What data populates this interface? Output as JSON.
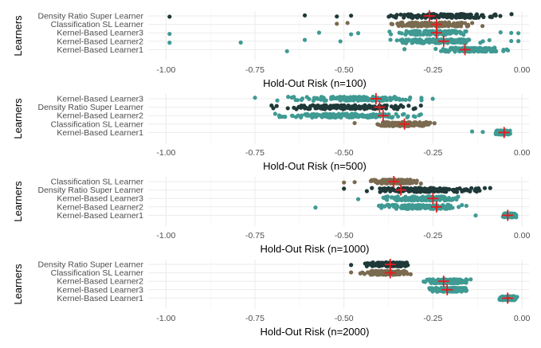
{
  "chart_data": [
    {
      "type": "scatter",
      "xlabel": "Hold-Out Risk (n=100)",
      "ylabel": "Learners",
      "xlim": [
        -1.05,
        0.02
      ],
      "xticks": [
        "-1.00",
        "-0.75",
        "-0.50",
        "-0.25",
        "0.00"
      ],
      "xtick_values": [
        -1.0,
        -0.75,
        -0.5,
        -0.25,
        0.0
      ],
      "categories": [
        "Density Ratio Super Learner",
        "Classification SL Learner",
        "Kernel-Based Learner3",
        "Kernel-Based Learner2",
        "Kernel-Based Learner1"
      ],
      "series": [
        {
          "category": "Density Ratio Super Learner",
          "color": "#1f3838",
          "range": [
            -0.43,
            -0.01
          ],
          "outliers": [
            -0.99,
            -0.61,
            -0.52,
            -0.48
          ],
          "mean": -0.26
        },
        {
          "category": "Classification SL Learner",
          "color": "#7a6a4f",
          "range": [
            -0.42,
            -0.08
          ],
          "outliers": [
            -0.52,
            -0.49
          ],
          "mean": -0.24
        },
        {
          "category": "Kernel-Based Learner3",
          "color": "#3f9a93",
          "range": [
            -0.41,
            -0.11
          ],
          "outliers": [
            -0.99,
            -0.57,
            -0.48,
            -0.46,
            -0.06,
            -0.03,
            -0.01
          ],
          "mean": -0.24
        },
        {
          "category": "Kernel-Based Learner2",
          "color": "#3f9a93",
          "range": [
            -0.4,
            -0.08
          ],
          "outliers": [
            -0.99,
            -0.79,
            -0.61,
            -0.51,
            -0.03,
            -0.01
          ],
          "mean": -0.22
        },
        {
          "category": "Kernel-Based Learner1",
          "color": "#3f9a93",
          "range": [
            -0.27,
            -0.01
          ],
          "outliers": [
            -0.66,
            -0.33
          ],
          "mean": -0.16
        }
      ]
    },
    {
      "type": "scatter",
      "xlabel": "Hold-Out Risk (n=500)",
      "ylabel": "Learners",
      "xlim": [
        -1.05,
        0.02
      ],
      "xticks": [
        "-1.00",
        "-0.75",
        "-0.50",
        "-0.25",
        "0.00"
      ],
      "xtick_values": [
        -1.0,
        -0.75,
        -0.5,
        -0.25,
        0.0
      ],
      "categories": [
        "Kernel-Based Learner3",
        "Density Ratio Super Learner",
        "Kernel-Based Learner2",
        "Classification SL Learner",
        "Kernel-Based Learner1"
      ],
      "series": [
        {
          "category": "Kernel-Based Learner3",
          "color": "#3f9a93",
          "range": [
            -0.73,
            -0.22
          ],
          "outliers": [
            -0.75
          ],
          "mean": -0.41
        },
        {
          "category": "Density Ratio Super Learner",
          "color": "#1f3838",
          "range": [
            -0.76,
            -0.22
          ],
          "outliers": [],
          "mean": -0.4
        },
        {
          "category": "Kernel-Based Learner2",
          "color": "#3f9a93",
          "range": [
            -0.76,
            -0.22
          ],
          "outliers": [],
          "mean": -0.39
        },
        {
          "category": "Classification SL Learner",
          "color": "#7a6a4f",
          "range": [
            -0.44,
            -0.22
          ],
          "outliers": [
            -0.47
          ],
          "mean": -0.33
        },
        {
          "category": "Kernel-Based Learner1",
          "color": "#3f9a93",
          "range": [
            -0.08,
            -0.03
          ],
          "outliers": [
            -0.14,
            -0.11
          ],
          "mean": -0.05
        }
      ]
    },
    {
      "type": "scatter",
      "xlabel": "Hold-Out Risk (n=1000)",
      "ylabel": "Learners",
      "xlim": [
        -1.05,
        0.02
      ],
      "xticks": [
        "-1.00",
        "-0.75",
        "-0.50",
        "-0.25",
        "0.00"
      ],
      "xtick_values": [
        -1.0,
        -0.75,
        -0.5,
        -0.25,
        0.0
      ],
      "categories": [
        "Classification SL Learner",
        "Density Ratio Super Learner",
        "Kernel-Based Learner3",
        "Kernel-Based Learner2",
        "Kernel-Based Learner1"
      ],
      "series": [
        {
          "category": "Classification SL Learner",
          "color": "#7a6a4f",
          "range": [
            -0.44,
            -0.27
          ],
          "outliers": [
            -0.5,
            -0.47
          ],
          "mean": -0.36
        },
        {
          "category": "Density Ratio Super Learner",
          "color": "#1f3838",
          "range": [
            -0.47,
            -0.07
          ],
          "outliers": [
            -0.5
          ],
          "mean": -0.34
        },
        {
          "category": "Kernel-Based Learner3",
          "color": "#3f9a93",
          "range": [
            -0.42,
            -0.14
          ],
          "outliers": [
            -0.46
          ],
          "mean": -0.25
        },
        {
          "category": "Kernel-Based Learner2",
          "color": "#3f9a93",
          "range": [
            -0.43,
            -0.13
          ],
          "outliers": [
            -0.58
          ],
          "mean": -0.24
        },
        {
          "category": "Kernel-Based Learner1",
          "color": "#3f9a93",
          "range": [
            -0.06,
            -0.01
          ],
          "outliers": [
            -0.13
          ],
          "mean": -0.04
        }
      ]
    },
    {
      "type": "scatter",
      "xlabel": "Hold-Out Risk (n=2000)",
      "ylabel": "Learners",
      "xlim": [
        -1.05,
        0.02
      ],
      "xticks": [
        "-1.00",
        "-0.75",
        "-0.50",
        "-0.25",
        "0.00"
      ],
      "xtick_values": [
        -1.0,
        -0.75,
        -0.5,
        -0.25,
        0.0
      ],
      "categories": [
        "Density Ratio Super Learner",
        "Classification SL Learner",
        "Kernel-Based Learner2",
        "Kernel-Based Learner3",
        "Kernel-Based Learner1"
      ],
      "series": [
        {
          "category": "Density Ratio Super Learner",
          "color": "#1f3838",
          "range": [
            -0.46,
            -0.3
          ],
          "outliers": [
            -0.48
          ],
          "mean": -0.37
        },
        {
          "category": "Classification SL Learner",
          "color": "#7a6a4f",
          "range": [
            -0.46,
            -0.3
          ],
          "outliers": [
            -0.48
          ],
          "mean": -0.37
        },
        {
          "category": "Kernel-Based Learner2",
          "color": "#3f9a93",
          "range": [
            -0.28,
            -0.13
          ],
          "outliers": [],
          "mean": -0.22
        },
        {
          "category": "Kernel-Based Learner3",
          "color": "#3f9a93",
          "range": [
            -0.28,
            -0.13
          ],
          "outliers": [],
          "mean": -0.21
        },
        {
          "category": "Kernel-Based Learner1",
          "color": "#3f9a93",
          "range": [
            -0.07,
            -0.01
          ],
          "outliers": [],
          "mean": -0.04
        }
      ]
    }
  ],
  "colors": {
    "mean_marker": "#e41a1c"
  }
}
